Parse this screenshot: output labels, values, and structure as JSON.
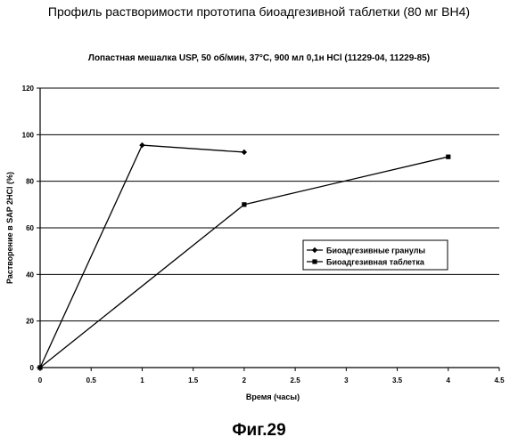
{
  "figure": {
    "title": "Профиль растворимости прототипа биоадгезивной таблетки (80 мг BH4)",
    "subtitle": "Лопастная мешалка USP, 50 об/мин, 37°C, 900 мл 0,1н HCl (11229-04, 11229-85)",
    "caption": "Фиг.29"
  },
  "chart_data": {
    "type": "line",
    "title": "Профиль растворимости прототипа биоадгезивной таблетки (80 мг BH4)",
    "subtitle": "Лопастная мешалка USP, 50 об/мин, 37°C, 900 мл 0,1н HCl (11229-04, 11229-85)",
    "xlabel": "Время (часы)",
    "ylabel": "Растворение в SAP 2HCl (%)",
    "xlim": [
      0,
      4.5
    ],
    "ylim": [
      0,
      120
    ],
    "x_ticks": [
      "0",
      "0.5",
      "1",
      "1.5",
      "2",
      "2.5",
      "3",
      "3.5",
      "4",
      "4.5"
    ],
    "y_ticks": [
      "0",
      "20",
      "40",
      "60",
      "80",
      "100",
      "120"
    ],
    "grid": "horizontal",
    "legend_position": "right",
    "series": [
      {
        "name": "Биоадгезивные гранулы",
        "marker": "diamond",
        "color": "#000000",
        "points": [
          [
            0,
            0
          ],
          [
            1,
            95.5
          ],
          [
            2,
            92.5
          ]
        ]
      },
      {
        "name": "Биоадгезивная таблетка",
        "marker": "square",
        "color": "#000000",
        "points": [
          [
            0,
            0
          ],
          [
            2,
            70
          ],
          [
            4,
            90.5
          ]
        ]
      }
    ]
  }
}
